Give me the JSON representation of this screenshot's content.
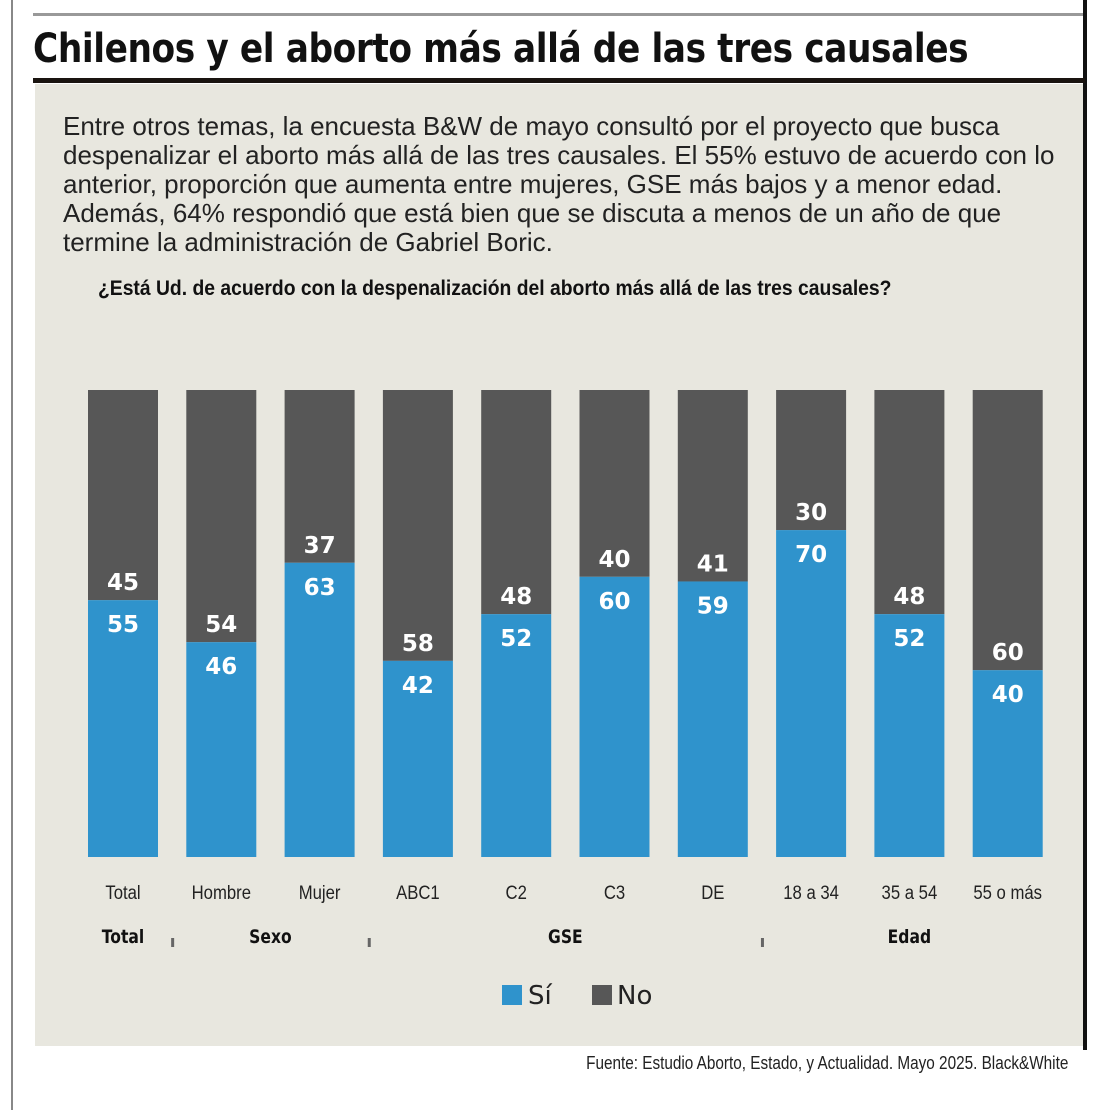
{
  "title": "Chilenos y el aborto más allá de las tres causales",
  "intro": "Entre otros temas, la encuesta B&W de mayo consultó por el proyecto que busca despenalizar el aborto más allá de las tres causales. El 55% estuvo de acuerdo con lo anterior, proporción que aumenta entre mujeres, GSE más bajos y a menor edad. Además, 64% respondió que está bien que se discuta a menos de un año de que termine la administración de Gabriel Boric.",
  "source": "Fuente: Estudio Aborto, Estado, y Actualidad. Mayo 2025. Black&White",
  "chart_data": {
    "type": "bar",
    "stacked": true,
    "title": "¿Está Ud. de acuerdo con la despenalización del aborto más allá de las tres causales?",
    "categories": [
      "Total",
      "Hombre",
      "Mujer",
      "ABC1",
      "C2",
      "C3",
      "DE",
      "18 a 34",
      "35 a 54",
      "55 o más"
    ],
    "groups": [
      {
        "label": "Total",
        "from": 0,
        "to": 0
      },
      {
        "label": "Sexo",
        "from": 1,
        "to": 2
      },
      {
        "label": "GSE",
        "from": 3,
        "to": 6
      },
      {
        "label": "Edad",
        "from": 7,
        "to": 9
      }
    ],
    "series": [
      {
        "name": "Sí",
        "color": "#2f93cc",
        "values": [
          55,
          46,
          63,
          42,
          52,
          60,
          59,
          70,
          52,
          40
        ]
      },
      {
        "name": "No",
        "color": "#575757",
        "values": [
          45,
          54,
          37,
          58,
          48,
          40,
          41,
          30,
          48,
          60
        ]
      }
    ],
    "ylim": [
      0,
      100
    ],
    "legend": "bottom-center"
  }
}
